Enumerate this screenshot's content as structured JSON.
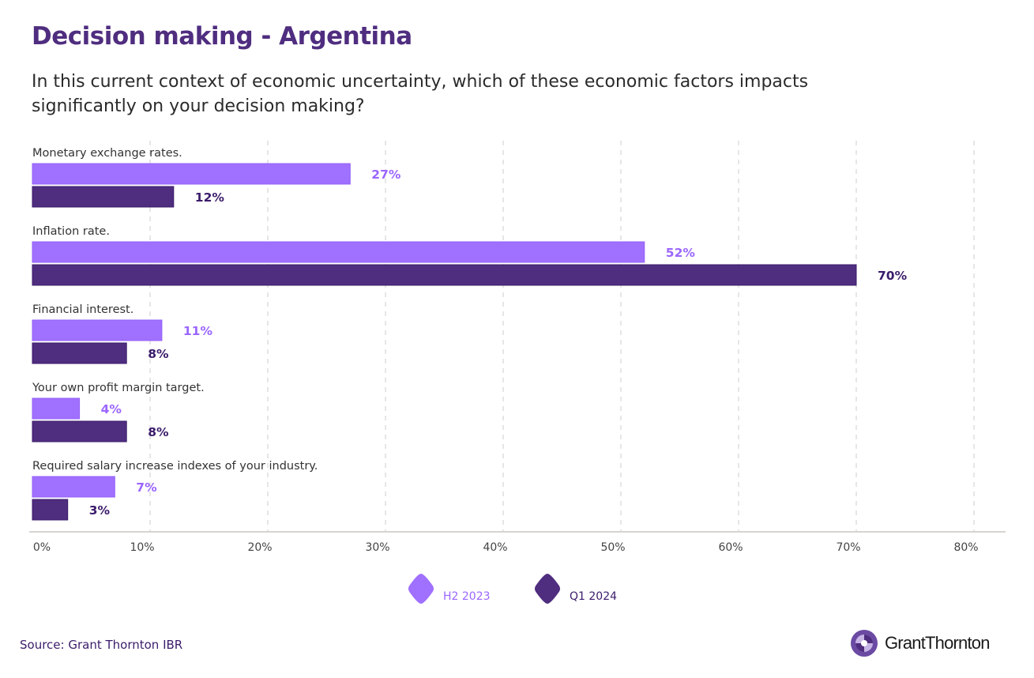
{
  "title": "Decision making - Argentina",
  "subtitle": "In this current context of economic uncertainty, which of these economic factors impacts significantly on your decision making?",
  "source": "Source: Grant Thornton IBR",
  "logo_text": "GrantThornton",
  "colors": {
    "h2_2023": "#a070ff",
    "q1_2024": "#4f2d7f",
    "label_h2": "#9b66ff",
    "label_q1": "#3b1c6b",
    "grid": "#cccccc",
    "axis": "#d8d3d0"
  },
  "chart_data": {
    "type": "bar",
    "orientation": "horizontal",
    "categories": [
      "Monetary exchange rates.",
      "Inflation rate.",
      "Financial interest.",
      "Your own profit margin target.",
      "Required salary increase indexes of your industry."
    ],
    "series": [
      {
        "name": "H2 2023",
        "values": [
          27,
          52,
          11,
          4,
          7
        ],
        "labels": [
          "27%",
          "52%",
          "11%",
          "4%",
          "7%"
        ]
      },
      {
        "name": "Q1 2024",
        "values": [
          12,
          70,
          8,
          8,
          3
        ],
        "labels": [
          "12%",
          "70%",
          "8%",
          "8%",
          "3%"
        ]
      }
    ],
    "xlim": [
      0,
      80
    ],
    "xticks": [
      "0%",
      "10%",
      "20%",
      "30%",
      "40%",
      "50%",
      "60%",
      "70%",
      "80%"
    ],
    "grid": true,
    "legend_placement": "bottom-center"
  }
}
